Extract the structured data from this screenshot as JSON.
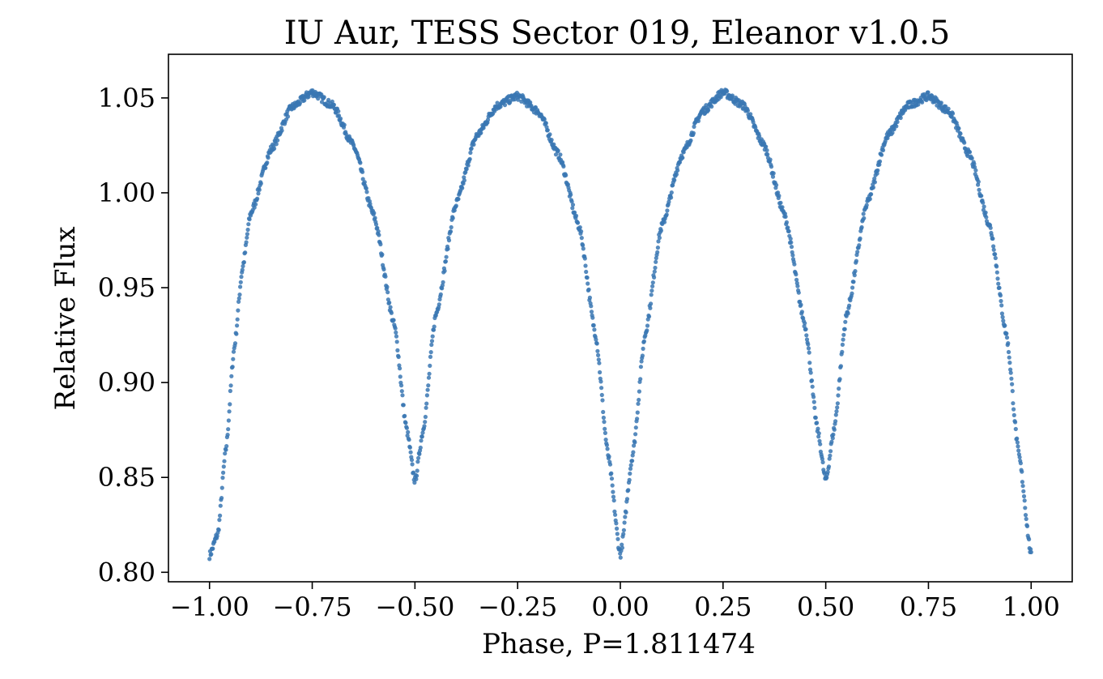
{
  "chart_data": {
    "type": "scatter",
    "title": "IU Aur, TESS Sector 019, Eleanor v1.0.5",
    "xlabel": "Phase, P=1.811474",
    "ylabel": "Relative Flux",
    "xlim": [
      -1.1,
      1.1
    ],
    "ylim": [
      0.795,
      1.073
    ],
    "xticks": [
      -1.0,
      -0.75,
      -0.5,
      -0.25,
      0.0,
      0.25,
      0.5,
      0.75,
      1.0
    ],
    "xtick_labels": [
      "−1.00",
      "−0.75",
      "−0.50",
      "−0.25",
      "0.00",
      "0.25",
      "0.50",
      "0.75",
      "1.00"
    ],
    "yticks": [
      0.8,
      0.85,
      0.9,
      0.95,
      1.0,
      1.05
    ],
    "ytick_labels": [
      "0.80",
      "0.85",
      "0.90",
      "0.95",
      "1.00",
      "1.05"
    ],
    "grid": false,
    "marker_color": "#3a77b3",
    "series": [
      {
        "x_range": [
          -1.0,
          1.0
        ],
        "y_min_primary": 0.808,
        "y_min_secondary": 0.848,
        "y_max": 1.053,
        "points": [
          [
            -1.0,
            0.809
          ],
          [
            -0.98,
            0.82
          ],
          [
            -0.96,
            0.865
          ],
          [
            -0.94,
            0.918
          ],
          [
            -0.92,
            0.96
          ],
          [
            -0.9,
            0.989
          ],
          [
            -0.85,
            1.023
          ],
          [
            -0.8,
            1.045
          ],
          [
            -0.75,
            1.053
          ],
          [
            -0.7,
            1.046
          ],
          [
            -0.65,
            1.025
          ],
          [
            -0.6,
            0.988
          ],
          [
            -0.55,
            0.93
          ],
          [
            -0.52,
            0.875
          ],
          [
            -0.5,
            0.848
          ],
          [
            -0.48,
            0.875
          ],
          [
            -0.45,
            0.935
          ],
          [
            -0.4,
            0.994
          ],
          [
            -0.35,
            1.03
          ],
          [
            -0.3,
            1.046
          ],
          [
            -0.25,
            1.051
          ],
          [
            -0.2,
            1.043
          ],
          [
            -0.15,
            1.02
          ],
          [
            -0.1,
            0.982
          ],
          [
            -0.06,
            0.925
          ],
          [
            -0.03,
            0.862
          ],
          [
            0.0,
            0.809
          ],
          [
            0.03,
            0.862
          ],
          [
            0.06,
            0.925
          ],
          [
            0.1,
            0.982
          ],
          [
            0.15,
            1.02
          ],
          [
            0.2,
            1.043
          ],
          [
            0.25,
            1.053
          ],
          [
            0.3,
            1.046
          ],
          [
            0.35,
            1.025
          ],
          [
            0.4,
            0.988
          ],
          [
            0.45,
            0.93
          ],
          [
            0.48,
            0.875
          ],
          [
            0.5,
            0.848
          ],
          [
            0.52,
            0.875
          ],
          [
            0.55,
            0.935
          ],
          [
            0.6,
            0.994
          ],
          [
            0.65,
            1.03
          ],
          [
            0.7,
            1.046
          ],
          [
            0.75,
            1.051
          ],
          [
            0.8,
            1.043
          ],
          [
            0.85,
            1.02
          ],
          [
            0.9,
            0.982
          ],
          [
            0.94,
            0.925
          ],
          [
            0.97,
            0.862
          ],
          [
            1.0,
            0.809
          ]
        ]
      }
    ]
  }
}
